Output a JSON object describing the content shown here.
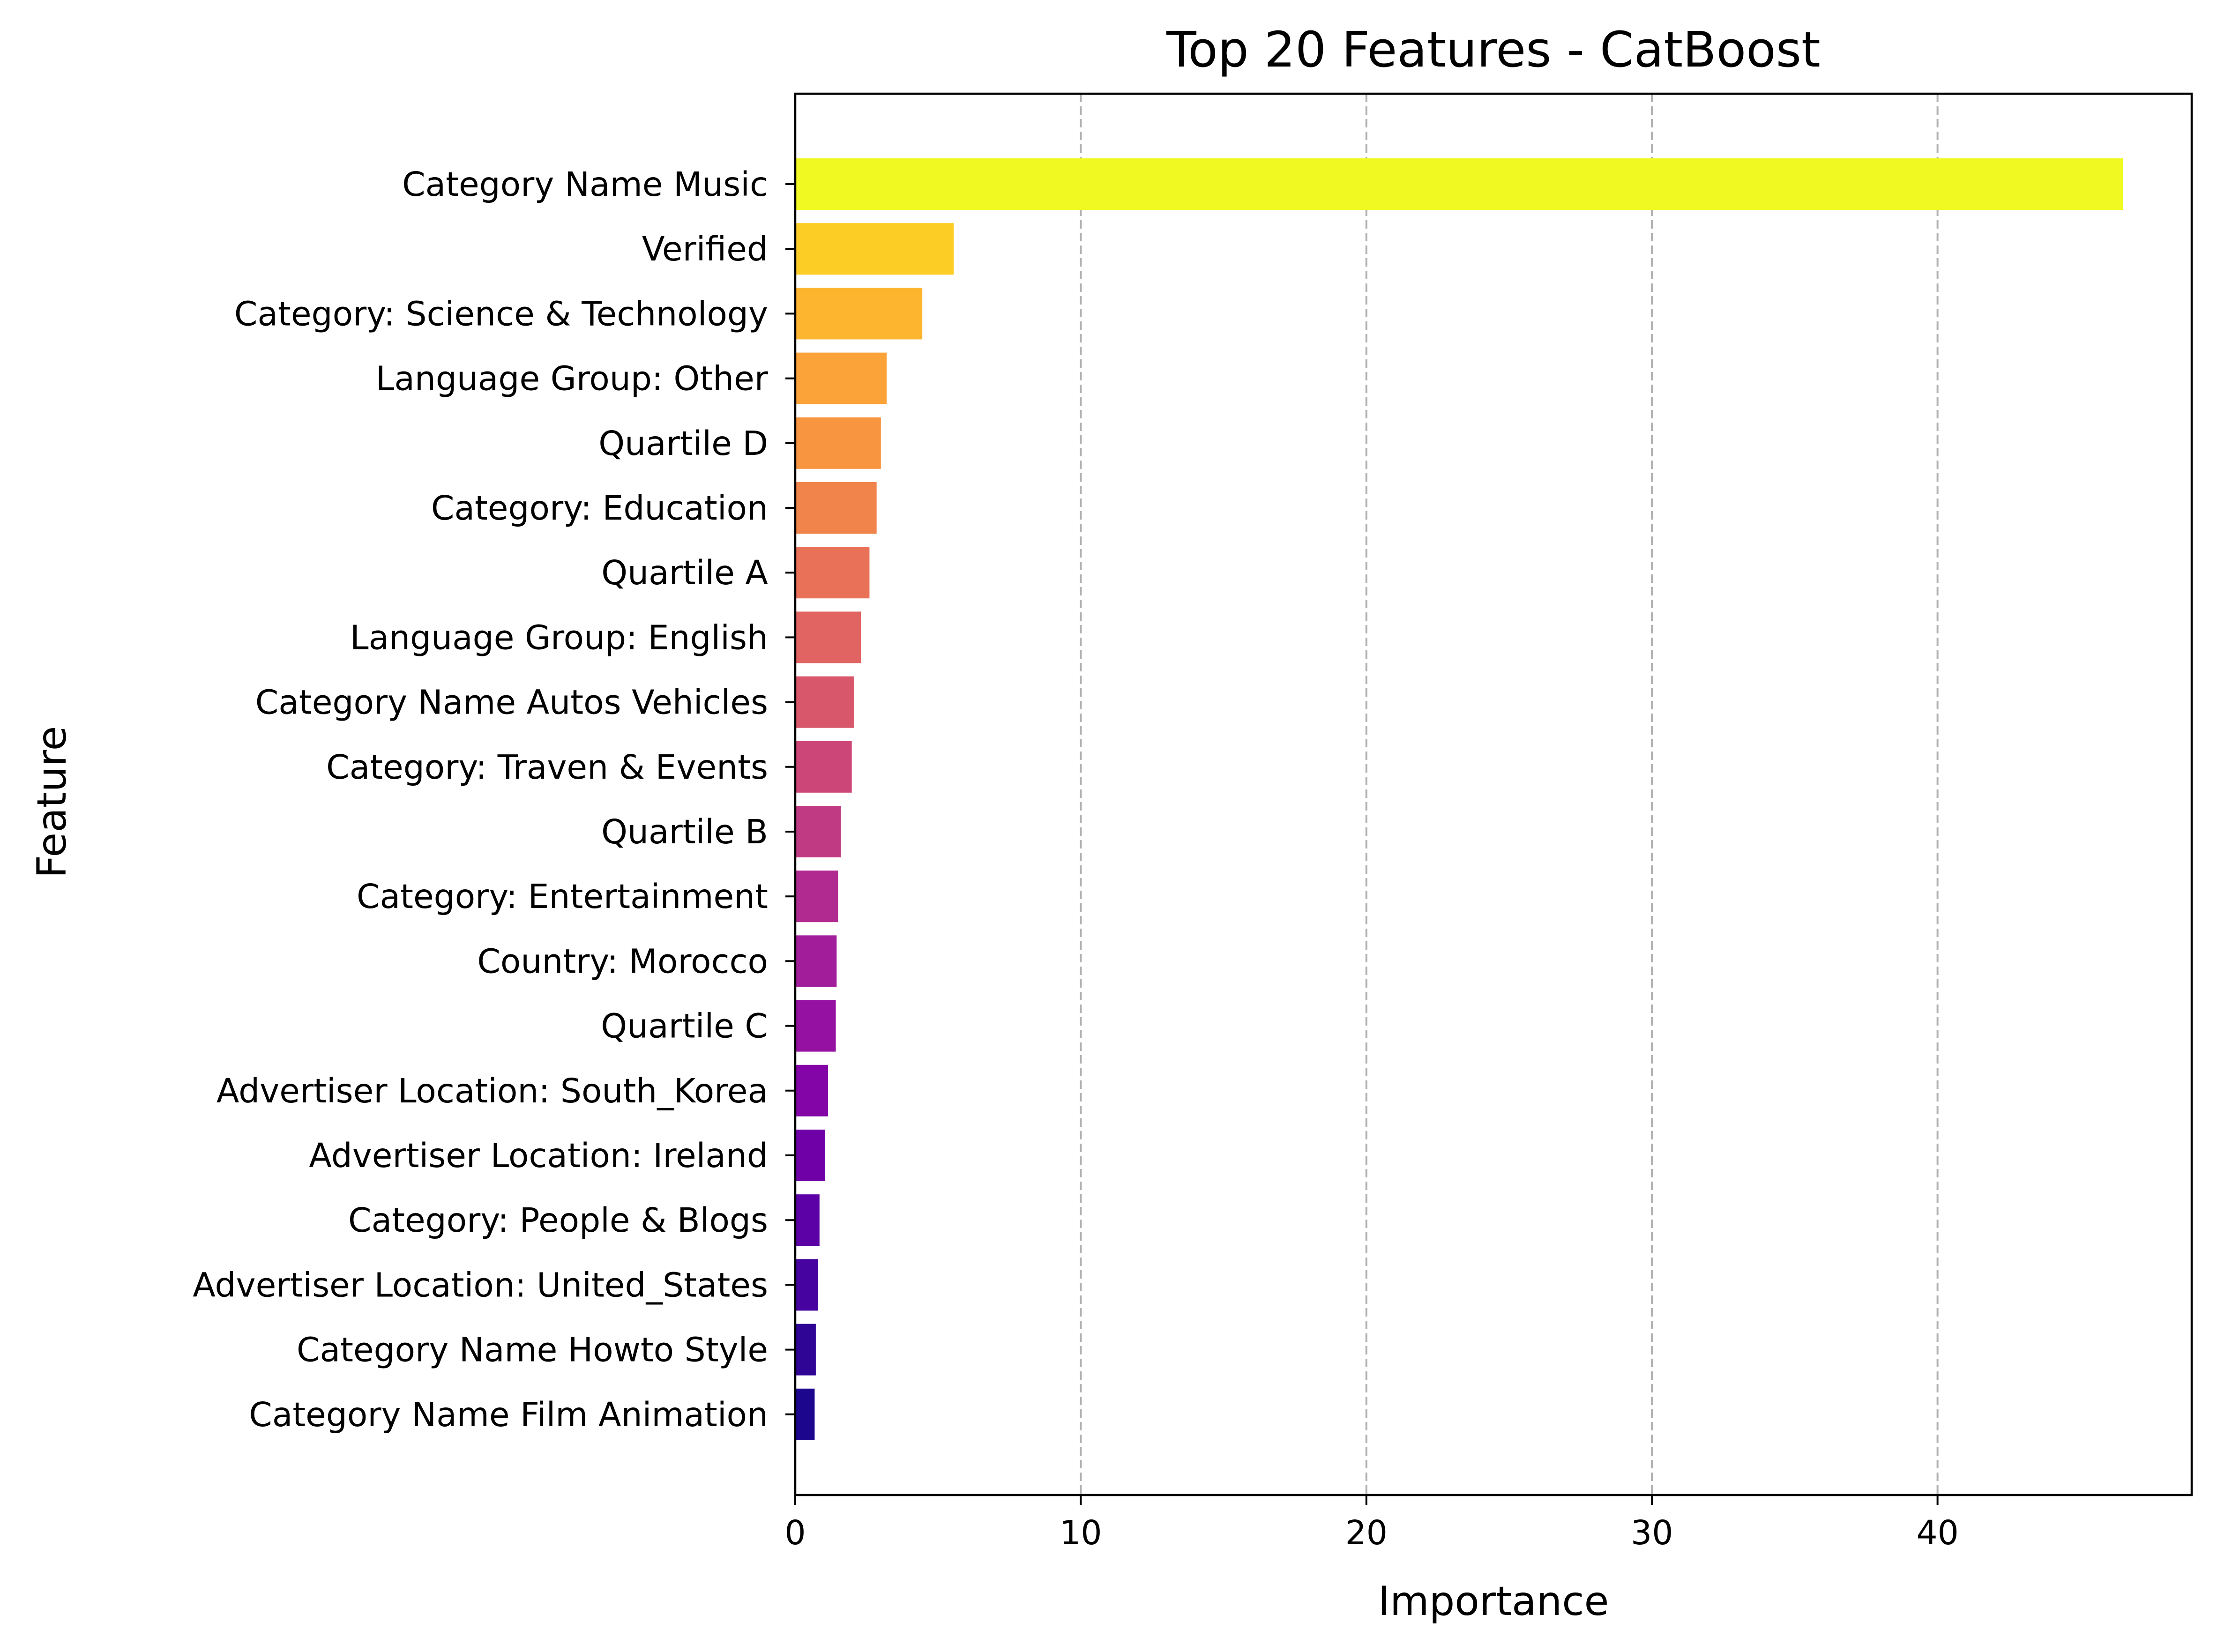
{
  "chart_data": {
    "type": "bar",
    "orientation": "horizontal",
    "title": "Top 20 Features - CatBoost",
    "xlabel": "Importance",
    "ylabel": "Feature",
    "xlim": [
      0,
      48.9
    ],
    "xticks": [
      0,
      10,
      20,
      30,
      40
    ],
    "grid": "x-dashed",
    "colormap": "plasma",
    "categories": [
      "Category Name Music",
      "Verified",
      "Category: Science & Technology",
      "Language Group: Other",
      "Quartile D",
      "Category: Education",
      "Quartile A",
      "Language Group: English",
      "Category Name Autos   Vehicles",
      "Category: Traven & Events",
      "Quartile B",
      "Category: Entertainment",
      "Country: Morocco",
      "Quartile C",
      "Advertiser Location: South_Korea",
      "Advertiser Location: Ireland",
      "Category: People & Blogs",
      "Advertiser Location: United_States",
      "Category Name Howto   Style",
      "Category Name Film   Animation"
    ],
    "values": [
      46.5,
      5.55,
      4.45,
      3.2,
      3.0,
      2.85,
      2.6,
      2.3,
      2.05,
      1.98,
      1.6,
      1.5,
      1.45,
      1.42,
      1.15,
      1.05,
      0.85,
      0.8,
      0.72,
      0.68
    ],
    "colors": [
      "#f0f921",
      "#fccd25",
      "#fdb42f",
      "#fba238",
      "#f89540",
      "#f1844b",
      "#e97158",
      "#e16462",
      "#d8576b",
      "#cc4778",
      "#c03a83",
      "#b12a90",
      "#a21d9a",
      "#9511a1",
      "#8305a7",
      "#6f00a8",
      "#5c01a6",
      "#46039f",
      "#2f0596",
      "#1c068e"
    ]
  }
}
